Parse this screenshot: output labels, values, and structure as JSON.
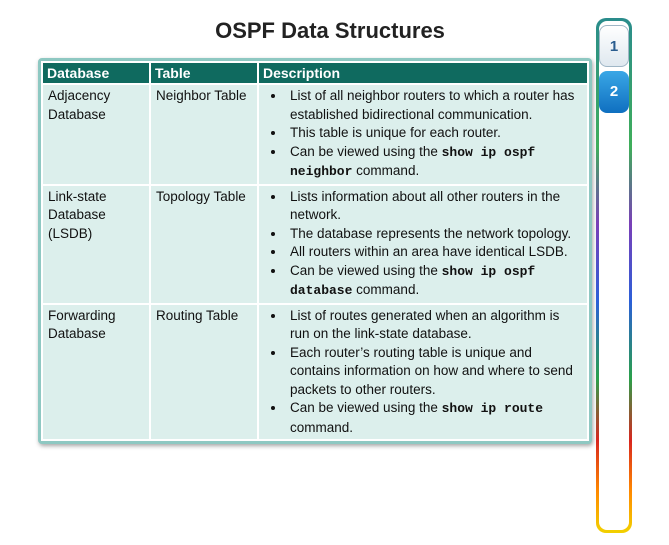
{
  "title": "OSPF Data Structures",
  "headers": {
    "database": "Database",
    "table": "Table",
    "description": "Description"
  },
  "rows": [
    {
      "database": "Adjacency Database",
      "table": "Neighbor Table",
      "bullets": [
        "List of all neighbor routers to which a router has established bidirectional communication.",
        "This table is unique for each router."
      ],
      "cmd_pre": "Can be viewed using the ",
      "cmd": "show ip ospf neighbor",
      "cmd_post": " command."
    },
    {
      "database": "Link-state Database (LSDB)",
      "table": "Topology Table",
      "bullets": [
        "Lists information about all other routers in the network.",
        "The database represents the network topology.",
        "All routers within an area have identical LSDB."
      ],
      "cmd_pre": "Can be viewed using the ",
      "cmd": "show ip ospf database",
      "cmd_post": " command."
    },
    {
      "database": "Forwarding Database",
      "table": "Routing Table",
      "bullets": [
        "List of routes generated when an algorithm is run on the link-state database.",
        "Each router’s routing table is unique and contains information on how and where to send packets to other routers."
      ],
      "cmd_pre": "Can be viewed using the ",
      "cmd": "show ip route",
      "cmd_post": " command."
    }
  ],
  "tabs": [
    "1",
    "2"
  ],
  "active_tab": "2"
}
